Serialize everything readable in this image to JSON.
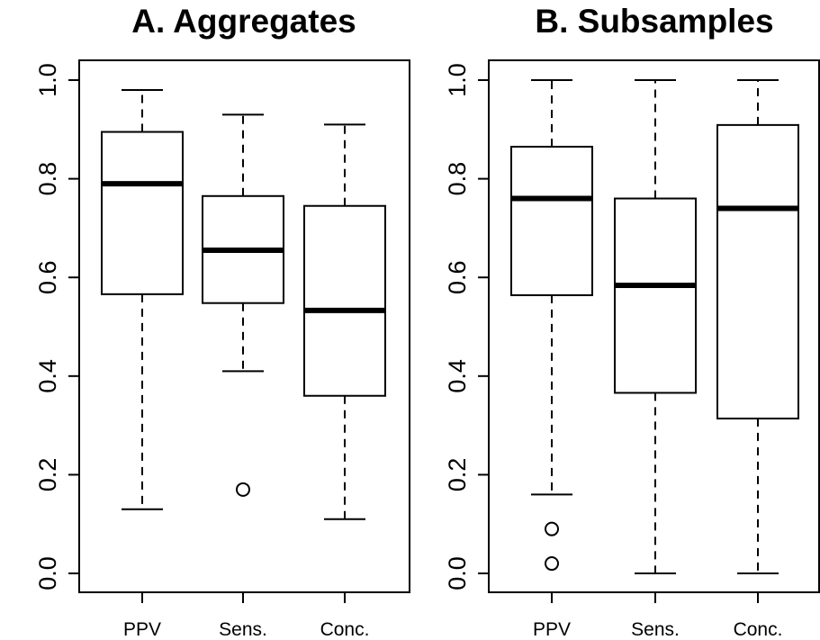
{
  "chart_data": [
    {
      "type": "box",
      "title": "A. Aggregates",
      "xlabel": "",
      "ylabel": "",
      "ylim": [
        0.0,
        1.0
      ],
      "yticks": [
        "0.0",
        "0.2",
        "0.4",
        "0.6",
        "0.8",
        "1.0"
      ],
      "categories": [
        "PPV",
        "Sens.",
        "Conc."
      ],
      "boxes": [
        {
          "min": 0.13,
          "q1": 0.566,
          "median": 0.79,
          "q3": 0.895,
          "max": 0.98,
          "outliers": []
        },
        {
          "min": 0.41,
          "q1": 0.548,
          "median": 0.655,
          "q3": 0.765,
          "max": 0.93,
          "outliers": [
            0.17
          ]
        },
        {
          "min": 0.11,
          "q1": 0.36,
          "median": 0.533,
          "q3": 0.745,
          "max": 0.91,
          "outliers": []
        }
      ]
    },
    {
      "type": "box",
      "title": "B. Subsamples",
      "xlabel": "",
      "ylabel": "",
      "ylim": [
        0.0,
        1.0
      ],
      "yticks": [
        "0.0",
        "0.2",
        "0.4",
        "0.6",
        "0.8",
        "1.0"
      ],
      "categories": [
        "PPV",
        "Sens.",
        "Conc."
      ],
      "boxes": [
        {
          "min": 0.16,
          "q1": 0.564,
          "median": 0.76,
          "q3": 0.865,
          "max": 1.0,
          "outliers": [
            0.09,
            0.02
          ]
        },
        {
          "min": 0.0,
          "q1": 0.366,
          "median": 0.584,
          "q3": 0.76,
          "max": 1.0,
          "outliers": []
        },
        {
          "min": 0.0,
          "q1": 0.314,
          "median": 0.74,
          "q3": 0.909,
          "max": 1.0,
          "outliers": []
        }
      ]
    }
  ]
}
